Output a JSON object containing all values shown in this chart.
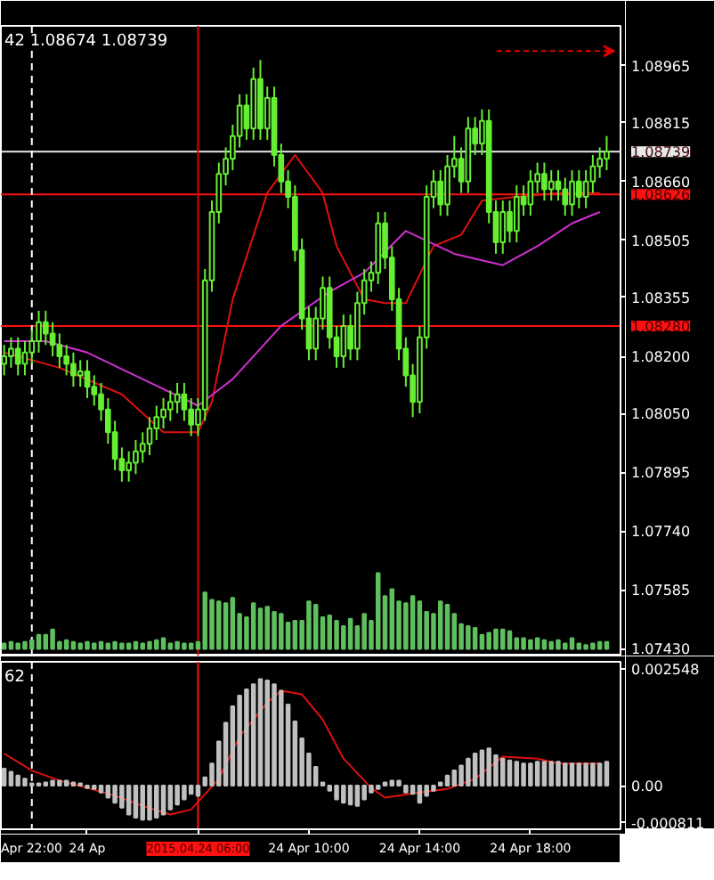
{
  "chart_data": [
    {
      "type": "candlestick",
      "title": "42 1.08674 1.08739",
      "color": "#66ee33",
      "x": [
        "2015-04-23T23:00",
        "2015-04-23T23:15",
        "2015-04-23T23:30",
        "2015-04-23T23:45",
        "2015-04-24T00:00",
        "2015-04-24T00:15",
        "2015-04-24T00:30",
        "2015-04-24T00:45",
        "2015-04-24T01:00",
        "2015-04-24T01:15",
        "2015-04-24T01:30",
        "2015-04-24T01:45",
        "2015-04-24T02:00",
        "2015-04-24T02:15",
        "2015-04-24T02:30",
        "2015-04-24T02:45",
        "2015-04-24T03:00",
        "2015-04-24T03:15",
        "2015-04-24T03:30",
        "2015-04-24T03:45",
        "2015-04-24T04:00",
        "2015-04-24T04:15",
        "2015-04-24T04:30",
        "2015-04-24T04:45",
        "2015-04-24T05:00",
        "2015-04-24T05:15",
        "2015-04-24T05:30",
        "2015-04-24T05:45",
        "2015-04-24T06:00",
        "2015-04-24T06:15",
        "2015-04-24T06:30",
        "2015-04-24T06:45",
        "2015-04-24T07:00",
        "2015-04-24T07:15",
        "2015-04-24T07:30",
        "2015-04-24T07:45",
        "2015-04-24T08:00",
        "2015-04-24T08:15",
        "2015-04-24T08:30",
        "2015-04-24T08:45",
        "2015-04-24T09:00",
        "2015-04-24T09:15",
        "2015-04-24T09:30",
        "2015-04-24T09:45",
        "2015-04-24T10:00",
        "2015-04-24T10:15",
        "2015-04-24T10:30",
        "2015-04-24T10:45",
        "2015-04-24T11:00",
        "2015-04-24T11:15",
        "2015-04-24T11:30",
        "2015-04-24T11:45",
        "2015-04-24T12:00",
        "2015-04-24T12:15",
        "2015-04-24T12:30",
        "2015-04-24T12:45",
        "2015-04-24T13:00",
        "2015-04-24T13:15",
        "2015-04-24T13:30",
        "2015-04-24T13:45",
        "2015-04-24T14:00",
        "2015-04-24T14:15",
        "2015-04-24T14:30",
        "2015-04-24T14:45",
        "2015-04-24T15:00",
        "2015-04-24T15:15",
        "2015-04-24T15:30",
        "2015-04-24T15:45",
        "2015-04-24T16:00",
        "2015-04-24T16:15",
        "2015-04-24T16:30",
        "2015-04-24T16:45",
        "2015-04-24T17:00",
        "2015-04-24T17:15",
        "2015-04-24T17:30",
        "2015-04-24T17:45",
        "2015-04-24T18:00",
        "2015-04-24T18:15",
        "2015-04-24T18:30",
        "2015-04-24T18:45",
        "2015-04-24T19:00",
        "2015-04-24T19:15",
        "2015-04-24T19:30",
        "2015-04-24T19:45",
        "2015-04-24T20:00",
        "2015-04-24T20:15",
        "2015-04-24T20:30",
        "2015-04-24T20:45"
      ],
      "ohlc": [
        [
          1.0818,
          1.0823,
          1.0815,
          1.082
        ],
        [
          1.082,
          1.0825,
          1.0817,
          1.0822
        ],
        [
          1.0822,
          1.0825,
          1.0815,
          1.0818
        ],
        [
          1.0818,
          1.0824,
          1.0815,
          1.0821
        ],
        [
          1.0821,
          1.0827,
          1.0818,
          1.0824
        ],
        [
          1.0824,
          1.0832,
          1.0821,
          1.0829
        ],
        [
          1.0829,
          1.0832,
          1.0823,
          1.0826
        ],
        [
          1.0826,
          1.0829,
          1.082,
          1.0823
        ],
        [
          1.0823,
          1.0826,
          1.0817,
          1.082
        ],
        [
          1.082,
          1.0823,
          1.0815,
          1.0818
        ],
        [
          1.0818,
          1.0821,
          1.0812,
          1.0815
        ],
        [
          1.0815,
          1.0819,
          1.0812,
          1.0816
        ],
        [
          1.0816,
          1.0819,
          1.0809,
          1.0812
        ],
        [
          1.0812,
          1.0815,
          1.0807,
          1.081
        ],
        [
          1.081,
          1.0813,
          1.0803,
          1.0806
        ],
        [
          1.0806,
          1.0809,
          1.0797,
          1.08
        ],
        [
          1.08,
          1.0803,
          1.079,
          1.0793
        ],
        [
          1.0793,
          1.0796,
          1.0787,
          1.079
        ],
        [
          1.079,
          1.0795,
          1.0787,
          1.0792
        ],
        [
          1.0792,
          1.0798,
          1.0789,
          1.0795
        ],
        [
          1.0795,
          1.08,
          1.0792,
          1.0797
        ],
        [
          1.0797,
          1.0804,
          1.0794,
          1.0801
        ],
        [
          1.0801,
          1.0807,
          1.0798,
          1.0804
        ],
        [
          1.0804,
          1.0809,
          1.0801,
          1.0806
        ],
        [
          1.0806,
          1.0811,
          1.0803,
          1.0808
        ],
        [
          1.0808,
          1.0813,
          1.0805,
          1.081
        ],
        [
          1.081,
          1.0813,
          1.0803,
          1.0806
        ],
        [
          1.0806,
          1.0809,
          1.0799,
          1.0802
        ],
        [
          1.0802,
          1.0809,
          1.0799,
          1.0806
        ],
        [
          1.0806,
          1.0843,
          1.0803,
          1.084
        ],
        [
          1.084,
          1.0861,
          1.0837,
          1.0858
        ],
        [
          1.0858,
          1.0871,
          1.0855,
          1.0868
        ],
        [
          1.0868,
          1.0875,
          1.0865,
          1.0872
        ],
        [
          1.0872,
          1.0881,
          1.0869,
          1.0878
        ],
        [
          1.0878,
          1.0889,
          1.0875,
          1.0886
        ],
        [
          1.0886,
          1.0889,
          1.0877,
          1.088
        ],
        [
          1.088,
          1.0896,
          1.0877,
          1.0893
        ],
        [
          1.0893,
          1.0898,
          1.0877,
          1.088
        ],
        [
          1.088,
          1.0891,
          1.0877,
          1.0888
        ],
        [
          1.0888,
          1.0891,
          1.087,
          1.0873
        ],
        [
          1.0873,
          1.0876,
          1.0863,
          1.0866
        ],
        [
          1.0866,
          1.0869,
          1.0859,
          1.0862
        ],
        [
          1.0862,
          1.0865,
          1.0845,
          1.0848
        ],
        [
          1.0848,
          1.0851,
          1.0827,
          1.083
        ],
        [
          1.083,
          1.0833,
          1.0819,
          1.0822
        ],
        [
          1.0822,
          1.0833,
          1.0819,
          1.083
        ],
        [
          1.083,
          1.0841,
          1.0827,
          1.0838
        ],
        [
          1.0838,
          1.0841,
          1.0822,
          1.0825
        ],
        [
          1.0825,
          1.0828,
          1.0817,
          1.082
        ],
        [
          1.082,
          1.0831,
          1.0817,
          1.0828
        ],
        [
          1.0828,
          1.0831,
          1.0819,
          1.0822
        ],
        [
          1.0822,
          1.0837,
          1.0819,
          1.0834
        ],
        [
          1.0834,
          1.0843,
          1.0831,
          1.084
        ],
        [
          1.084,
          1.0845,
          1.0837,
          1.0842
        ],
        [
          1.0842,
          1.0858,
          1.0839,
          1.0855
        ],
        [
          1.0855,
          1.0858,
          1.0843,
          1.0846
        ],
        [
          1.0846,
          1.0849,
          1.0832,
          1.0835
        ],
        [
          1.0835,
          1.0838,
          1.0819,
          1.0822
        ],
        [
          1.0822,
          1.0825,
          1.0812,
          1.0815
        ],
        [
          1.0815,
          1.0818,
          1.0804,
          1.0808
        ],
        [
          1.0808,
          1.0828,
          1.0805,
          1.0825
        ],
        [
          1.0825,
          1.0865,
          1.0822,
          1.0862
        ],
        [
          1.0862,
          1.0869,
          1.0859,
          1.0866
        ],
        [
          1.0866,
          1.0869,
          1.0857,
          1.086
        ],
        [
          1.086,
          1.0873,
          1.0857,
          1.087
        ],
        [
          1.087,
          1.0878,
          1.0867,
          1.0872
        ],
        [
          1.0872,
          1.0875,
          1.0863,
          1.0866
        ],
        [
          1.0866,
          1.0883,
          1.0863,
          1.088
        ],
        [
          1.088,
          1.0883,
          1.0873,
          1.0876
        ],
        [
          1.0876,
          1.0885,
          1.0873,
          1.0882
        ],
        [
          1.0882,
          1.0885,
          1.0855,
          1.0858
        ],
        [
          1.0858,
          1.0861,
          1.0847,
          1.085
        ],
        [
          1.085,
          1.0861,
          1.0847,
          1.0858
        ],
        [
          1.0858,
          1.0861,
          1.085,
          1.0853
        ],
        [
          1.0853,
          1.0865,
          1.085,
          1.0862
        ],
        [
          1.0862,
          1.0865,
          1.0857,
          1.086
        ],
        [
          1.086,
          1.0869,
          1.0857,
          1.0866
        ],
        [
          1.0866,
          1.0871,
          1.0863,
          1.0868
        ],
        [
          1.0868,
          1.0871,
          1.0861,
          1.0864
        ],
        [
          1.0864,
          1.0869,
          1.0861,
          1.0866
        ],
        [
          1.0866,
          1.0869,
          1.0861,
          1.0864
        ],
        [
          1.0864,
          1.0867,
          1.0857,
          1.086
        ],
        [
          1.086,
          1.0869,
          1.0857,
          1.0866
        ],
        [
          1.0866,
          1.0869,
          1.0859,
          1.0862
        ],
        [
          1.0862,
          1.0869,
          1.0859,
          1.0866
        ],
        [
          1.0866,
          1.0873,
          1.0863,
          1.087
        ],
        [
          1.087,
          1.0875,
          1.0867,
          1.0872
        ],
        [
          1.0872,
          1.0878,
          1.0869,
          1.08739
        ]
      ],
      "series": [
        {
          "type": "bar",
          "color": "#5fbf5f",
          "base": [
            1.0743,
            1.0743,
            1.0743,
            1.0743,
            1.0743,
            1.0743,
            1.0743,
            1.0743,
            1.0743,
            1.0743,
            1.0743,
            1.0743,
            1.0743,
            1.0743,
            1.0743,
            1.0743,
            1.0743,
            1.0743,
            1.0743,
            1.0743,
            1.0743,
            1.0743,
            1.0743,
            1.0743,
            1.0743,
            1.0743,
            1.0743,
            1.0743,
            1.0743,
            1.0743,
            1.0743,
            1.0743,
            1.0743,
            1.0743,
            1.0743,
            1.0743,
            1.0743,
            1.0743,
            1.0743,
            1.0743,
            1.0743,
            1.0743,
            1.0743,
            1.0743,
            1.0743,
            1.0743,
            1.0743,
            1.0743,
            1.0743,
            1.0743,
            1.0743,
            1.0743,
            1.0743,
            1.0743,
            1.0743,
            1.0743,
            1.0743,
            1.0743,
            1.0743,
            1.0743,
            1.0743,
            1.0743,
            1.0743,
            1.0743,
            1.0743,
            1.0743,
            1.0743,
            1.0743,
            1.0743,
            1.0743,
            1.0743,
            1.0743,
            1.0743,
            1.0743,
            1.0743,
            1.0743,
            1.0743,
            1.0743,
            1.0743,
            1.0743,
            1.0743,
            1.0743,
            1.0743,
            1.0743,
            1.0743,
            1.0743,
            1.0743,
            1.0743
          ],
          "values": [
            0.00014,
            0.00018,
            0.00014,
            0.00018,
            0.00023,
            0.00037,
            0.00037,
            0.00051,
            0.00018,
            0.00023,
            0.00018,
            0.00014,
            0.00018,
            0.00014,
            0.00018,
            0.00014,
            0.00018,
            0.00014,
            0.00014,
            0.00018,
            0.00014,
            0.00018,
            0.00023,
            0.00028,
            0.00014,
            0.00018,
            0.00014,
            0.00014,
            0.00018,
            0.00148,
            0.00129,
            0.00125,
            0.0012,
            0.00134,
            0.00092,
            0.00083,
            0.0012,
            0.00106,
            0.00111,
            0.00097,
            0.00092,
            0.00069,
            0.00074,
            0.00074,
            0.00125,
            0.00116,
            0.00083,
            0.00088,
            0.00074,
            0.0006,
            0.00079,
            0.0006,
            0.00092,
            0.00074,
            0.00199,
            0.00139,
            0.00157,
            0.00125,
            0.0012,
            0.00139,
            0.00125,
            0.00097,
            0.00092,
            0.00125,
            0.00116,
            0.00092,
            0.00065,
            0.0006,
            0.00055,
            0.00037,
            0.00042,
            0.00051,
            0.00051,
            0.00046,
            0.00028,
            0.00028,
            0.00023,
            0.00028,
            0.00023,
            0.00018,
            0.00023,
            0.00014,
            0.00028,
            0.00014,
            0.0001,
            0.00014,
            0.00018,
            0.00018
          ]
        },
        {
          "type": "line",
          "color": "#e01010",
          "x": [
            "2015-04-23T23:00",
            "2015-04-24T01:00",
            "2015-04-24T03:15",
            "2015-04-24T04:45",
            "2015-04-24T06:00",
            "2015-04-24T06:30",
            "2015-04-24T07:15",
            "2015-04-24T08:30",
            "2015-04-24T09:30",
            "2015-04-24T10:30",
            "2015-04-24T11:00",
            "2015-04-24T12:00",
            "2015-04-24T12:45",
            "2015-04-24T13:30",
            "2015-04-24T14:30",
            "2015-04-24T15:30",
            "2015-04-24T16:15",
            "2015-04-24T17:30",
            "2015-04-24T19:00",
            "2015-04-24T20:30"
          ],
          "values": [
            1.0821,
            1.0817,
            1.081,
            1.08,
            1.08,
            1.0808,
            1.0835,
            1.0863,
            1.0873,
            1.0863,
            1.0849,
            1.0835,
            1.0834,
            1.0834,
            1.0849,
            1.0852,
            1.0861,
            1.0862,
            1.0863,
            1.0863
          ]
        },
        {
          "type": "line",
          "color": "#d030d0",
          "x": [
            "2015-04-23T23:00",
            "2015-04-24T00:30",
            "2015-04-24T02:00",
            "2015-04-24T04:00",
            "2015-04-24T06:00",
            "2015-04-24T07:15",
            "2015-04-24T09:00",
            "2015-04-24T10:45",
            "2015-04-24T12:00",
            "2015-04-24T13:30",
            "2015-04-24T15:15",
            "2015-04-24T17:00",
            "2015-04-24T18:15",
            "2015-04-24T19:30",
            "2015-04-24T20:30"
          ],
          "values": [
            1.0824,
            1.0824,
            1.0821,
            1.0814,
            1.0807,
            1.0814,
            1.0828,
            1.0837,
            1.0842,
            1.0853,
            1.0847,
            1.0844,
            1.0849,
            1.0855,
            1.0858
          ]
        }
      ],
      "xlim": [
        "2015-04-23T22:53",
        "2015-04-24T21:15"
      ],
      "ylim": [
        1.0741,
        1.0907
      ],
      "yticks": [
        1.08965,
        1.08815,
        {
          "value": 1.0866,
          "label": "1.08660"
        },
        1.08505,
        1.08355,
        {
          "value": 1.082,
          "label": "1.08200"
        },
        {
          "value": 1.0805,
          "label": "1.08050"
        },
        1.07895,
        {
          "value": 1.0774,
          "label": "1.07740"
        },
        1.07585,
        {
          "value": 1.0743,
          "label": "1.07430"
        }
      ],
      "tick_labels": "y",
      "ref_lines": [
        {
          "axis": "y",
          "value": 1.08739,
          "label": "1.08739",
          "color": "#e8e8e8"
        },
        {
          "axis": "y",
          "value": 1.08626,
          "label": "1.08626",
          "color": "#ff1010"
        },
        {
          "axis": "y",
          "value": 1.0828,
          "label": "1.08280",
          "color": "#ff1010"
        },
        {
          "axis": "x",
          "value": "2015-04-24T06:00",
          "color": "#e00000"
        },
        {
          "axis": "x",
          "value": "2015-04-24T00:00",
          "color": "#ffffff",
          "line_style": "dashed"
        }
      ]
    },
    {
      "type": "bar",
      "title": "62",
      "color": "#c0c0c0",
      "x": [
        "2015-04-23T23:00",
        "2015-04-23T23:15",
        "2015-04-23T23:30",
        "2015-04-23T23:45",
        "2015-04-24T00:00",
        "2015-04-24T00:15",
        "2015-04-24T00:30",
        "2015-04-24T00:45",
        "2015-04-24T01:00",
        "2015-04-24T01:15",
        "2015-04-24T01:30",
        "2015-04-24T01:45",
        "2015-04-24T02:00",
        "2015-04-24T02:15",
        "2015-04-24T02:30",
        "2015-04-24T02:45",
        "2015-04-24T03:00",
        "2015-04-24T03:15",
        "2015-04-24T03:30",
        "2015-04-24T03:45",
        "2015-04-24T04:00",
        "2015-04-24T04:15",
        "2015-04-24T04:30",
        "2015-04-24T04:45",
        "2015-04-24T05:00",
        "2015-04-24T05:15",
        "2015-04-24T05:30",
        "2015-04-24T05:45",
        "2015-04-24T06:00",
        "2015-04-24T06:15",
        "2015-04-24T06:30",
        "2015-04-24T06:45",
        "2015-04-24T07:00",
        "2015-04-24T07:15",
        "2015-04-24T07:30",
        "2015-04-24T07:45",
        "2015-04-24T08:00",
        "2015-04-24T08:15",
        "2015-04-24T08:30",
        "2015-04-24T08:45",
        "2015-04-24T09:00",
        "2015-04-24T09:15",
        "2015-04-24T09:30",
        "2015-04-24T09:45",
        "2015-04-24T10:00",
        "2015-04-24T10:15",
        "2015-04-24T10:30",
        "2015-04-24T10:45",
        "2015-04-24T11:00",
        "2015-04-24T11:15",
        "2015-04-24T11:30",
        "2015-04-24T11:45",
        "2015-04-24T12:00",
        "2015-04-24T12:15",
        "2015-04-24T12:30",
        "2015-04-24T12:45",
        "2015-04-24T13:00",
        "2015-04-24T13:15",
        "2015-04-24T13:30",
        "2015-04-24T13:45",
        "2015-04-24T14:00",
        "2015-04-24T14:15",
        "2015-04-24T14:30",
        "2015-04-24T14:45",
        "2015-04-24T15:00",
        "2015-04-24T15:15",
        "2015-04-24T15:30",
        "2015-04-24T15:45",
        "2015-04-24T16:00",
        "2015-04-24T16:15",
        "2015-04-24T16:30",
        "2015-04-24T16:45",
        "2015-04-24T17:00",
        "2015-04-24T17:15",
        "2015-04-24T17:30",
        "2015-04-24T17:45",
        "2015-04-24T18:00",
        "2015-04-24T18:15",
        "2015-04-24T18:30",
        "2015-04-24T18:45",
        "2015-04-24T19:00",
        "2015-04-24T19:15",
        "2015-04-24T19:30",
        "2015-04-24T19:45",
        "2015-04-24T20:00",
        "2015-04-24T20:15",
        "2015-04-24T20:30",
        "2015-04-24T20:45"
      ],
      "values": [
        0.00037,
        0.0003,
        0.00022,
        0.00015,
        5e-05,
        5e-05,
        7e-05,
        0.00011,
        0.00011,
        0.00011,
        7e-05,
        5e-05,
        -5e-05,
        -7e-05,
        -0.00015,
        -0.00026,
        -0.00037,
        -0.00048,
        -0.00063,
        -0.0007,
        -0.00074,
        -0.00074,
        -0.0007,
        -0.00063,
        -0.00052,
        -0.00041,
        -0.0003,
        -0.00018,
        -0.00022,
        0.00018,
        0.00048,
        0.00096,
        0.00137,
        0.00173,
        0.00196,
        0.0021,
        0.00221,
        0.00232,
        0.00229,
        0.00221,
        0.00207,
        0.00177,
        0.0014,
        0.00103,
        0.0007,
        0.00041,
        7e-05,
        -0.00011,
        -0.0003,
        -0.00037,
        -0.00041,
        -0.00044,
        -0.0003,
        -0.00015,
        -7e-05,
        7e-05,
        0.00011,
        0.00011,
        -0.00015,
        -0.00018,
        -0.00037,
        -0.00022,
        -0.00011,
        7e-05,
        0.00022,
        0.00033,
        0.00044,
        0.00059,
        0.0007,
        0.00077,
        0.00081,
        0.00066,
        0.00059,
        0.00055,
        0.00052,
        0.00048,
        0.00048,
        0.00052,
        0.00052,
        0.00052,
        0.00052,
        0.00048,
        0.00048,
        0.00048,
        0.00048,
        0.00048,
        0.00048,
        0.00052
      ],
      "series": [
        {
          "type": "line",
          "color": "#e01010",
          "x": [
            "2015-04-23T23:00",
            "2015-04-24T00:00",
            "2015-04-24T01:00",
            "2015-04-24T02:00",
            "2015-04-24T03:00",
            "2015-04-24T04:00",
            "2015-04-24T05:00",
            "2015-04-24T05:45",
            "2015-04-24T06:45",
            "2015-04-24T07:30",
            "2015-04-24T08:30",
            "2015-04-24T09:00",
            "2015-04-24T09:45",
            "2015-04-24T10:30",
            "2015-04-24T11:15",
            "2015-04-24T12:15",
            "2015-04-24T12:45",
            "2015-04-24T14:00",
            "2015-04-24T15:00",
            "2015-04-24T16:00",
            "2015-04-24T17:00",
            "2015-04-24T18:15",
            "2015-04-24T19:00",
            "2015-04-24T20:30"
          ],
          "values": [
            0.0007,
            0.00033,
            0.00011,
            -5e-05,
            -0.00022,
            -0.00044,
            -0.00063,
            -0.00052,
            0.00015,
            0.00107,
            0.00181,
            0.00207,
            0.00199,
            0.00144,
            0.00059,
            -5e-05,
            -0.00026,
            -0.00015,
            -7e-05,
            0.00015,
            0.00063,
            0.00059,
            0.00048,
            0.00048
          ]
        }
      ],
      "xlim": [
        "2015-04-23T22:53",
        "2015-04-24T21:15"
      ],
      "ylim": [
        -0.00095,
        0.0027
      ],
      "xticks": [
        {
          "value": "2015-04-24T02:00",
          "label": "24 Ap"
        },
        {
          "value": "2015-04-24T06:00",
          "label": null
        },
        {
          "value": "2015-04-24T10:00",
          "label": "24 Apr 10:00"
        },
        {
          "value": "2015-04-24T14:00",
          "label": "24 Apr 14:00"
        },
        {
          "value": "2015-04-24T18:00",
          "label": "24 Apr 18:00"
        }
      ],
      "yticks": [
        0.002548,
        {
          "value": 0,
          "label": "0.00"
        },
        -0.000811
      ],
      "annotations": [
        "Apr 22:00"
      ],
      "ref_lines": [
        {
          "axis": "x",
          "value": "2015-04-24T06:00",
          "label": "2015.04.24 06:00",
          "color": "#ff1010"
        },
        {
          "axis": "x",
          "value": "2015-04-24T00:00",
          "color": "#ffffff",
          "line_style": "dashed"
        }
      ]
    }
  ]
}
